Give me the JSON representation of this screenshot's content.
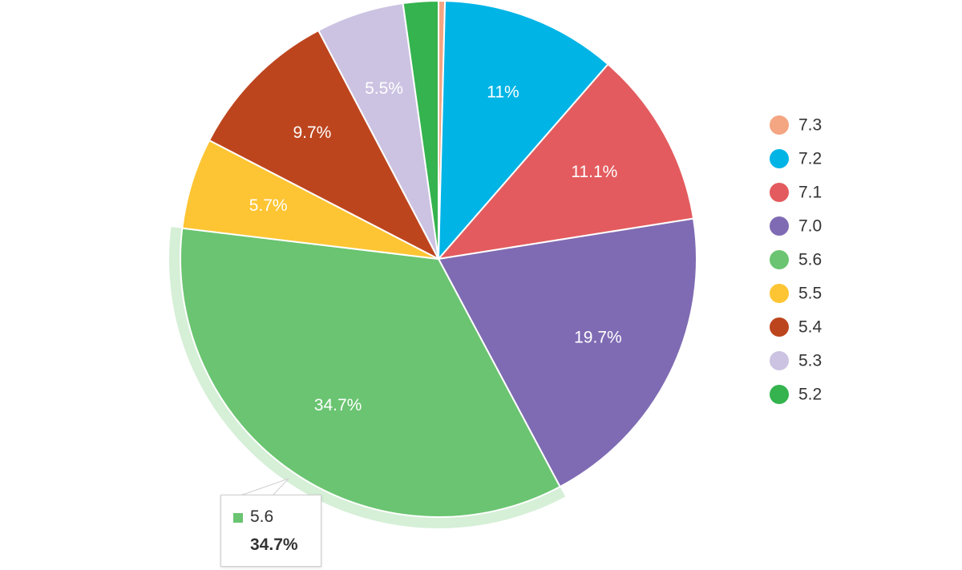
{
  "chart_data": {
    "type": "pie",
    "title": "",
    "legend_position": "right",
    "slices": [
      {
        "name": "7.3",
        "value": 0.4,
        "label": "",
        "color": "#f4a582"
      },
      {
        "name": "7.2",
        "value": 11.0,
        "label": "11%",
        "color": "#00b4e6"
      },
      {
        "name": "7.1",
        "value": 11.1,
        "label": "11.1%",
        "color": "#e35b5e"
      },
      {
        "name": "7.0",
        "value": 19.7,
        "label": "19.7%",
        "color": "#7f6bb3"
      },
      {
        "name": "5.6",
        "value": 34.7,
        "label": "34.7%",
        "color": "#6ac471"
      },
      {
        "name": "5.5",
        "value": 5.7,
        "label": "5.7%",
        "color": "#fdc533"
      },
      {
        "name": "5.4",
        "value": 9.7,
        "label": "9.7%",
        "color": "#bd451e"
      },
      {
        "name": "5.3",
        "value": 5.5,
        "label": "5.5%",
        "color": "#ccc3e2"
      },
      {
        "name": "5.2",
        "value": 2.2,
        "label": "",
        "color": "#34b34e"
      }
    ],
    "highlighted": "5.6"
  },
  "tooltip": {
    "name": "5.6",
    "value": "34.7%",
    "color": "#6ac471"
  }
}
